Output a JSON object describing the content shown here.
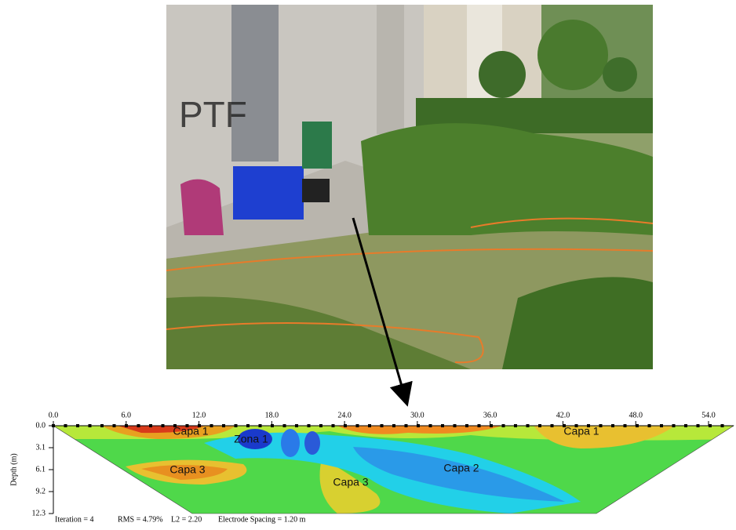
{
  "section": {
    "x_labels": [
      "0.0",
      "6.0",
      "12.0",
      "18.0",
      "24.0",
      "30.0",
      "36.0",
      "42.0",
      "48.0",
      "54.0"
    ],
    "y_labels": [
      "0.0",
      "3.1",
      "6.1",
      "9.2",
      "12.3"
    ],
    "y_title": "Depth (m)",
    "regions": [
      "Capa 1",
      "Zona 1",
      "Capa 1",
      "Capa 3",
      "Capa 2",
      "Capa 3"
    ],
    "footer": [
      "Iteration = 4",
      "RMS = 4.79%",
      "L2 = 2.20",
      "Electrode Spacing = 1.20 m"
    ]
  }
}
